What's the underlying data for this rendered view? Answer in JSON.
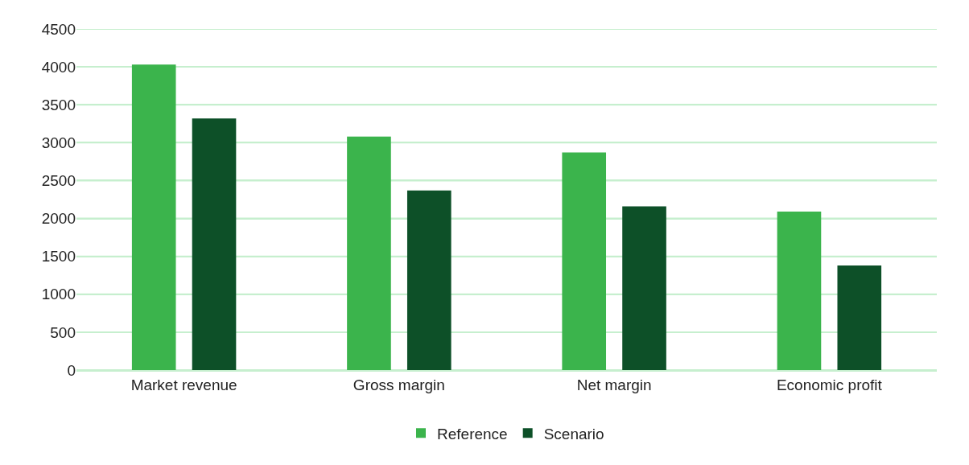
{
  "chart_data": {
    "type": "bar",
    "categories": [
      "Market revenue",
      "Gross margin",
      "Net margin",
      "Economic profit"
    ],
    "series": [
      {
        "name": "Reference",
        "color": "#3bb44c",
        "values": [
          4030,
          3080,
          2870,
          2090
        ]
      },
      {
        "name": "Scenario",
        "color": "#0d5028",
        "values": [
          3320,
          2370,
          2160,
          1380
        ]
      }
    ],
    "ylim": [
      0,
      4500
    ],
    "yticks": [
      0,
      500,
      1000,
      1500,
      2000,
      2500,
      3000,
      3500,
      4000,
      4500
    ],
    "grid": "y",
    "legend": "bottom"
  }
}
